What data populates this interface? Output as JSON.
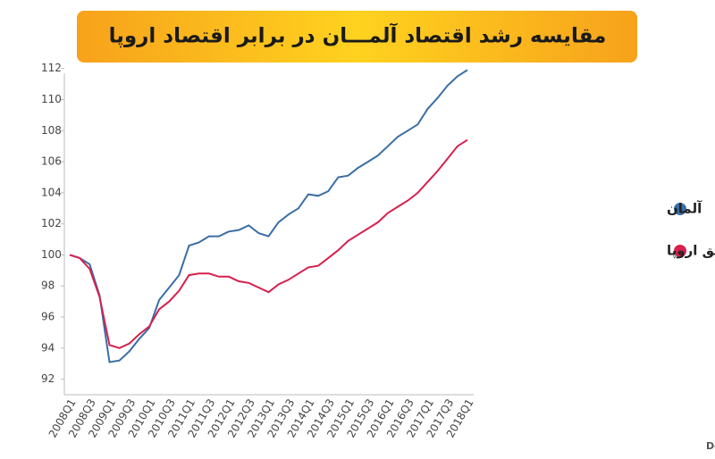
{
  "chart_data": {
    "type": "line",
    "title": "مقایسه رشد اقتصاد آلمـــان در برابر اقتصاد اروپا",
    "source": "منبع: Destatis,Eurostat,Haver Analyticd,and IMF staff calculations",
    "categories": [
      "2008Q1",
      null,
      "2008Q3",
      null,
      "2009Q1",
      null,
      "2009Q3",
      null,
      "2010Q1",
      null,
      "2010Q3",
      null,
      "2011Q1",
      null,
      "2011Q3",
      null,
      "2012Q1",
      null,
      "2012Q3",
      null,
      "2013Q1",
      null,
      "2013Q3",
      null,
      "2014Q1",
      null,
      "2014Q3",
      null,
      "2015Q1",
      null,
      "2015Q3",
      null,
      "2016Q1",
      null,
      "2016Q3",
      null,
      "2017Q1",
      null,
      "2017Q3",
      null,
      "2018Q1"
    ],
    "series": [
      {
        "name": "آلمان",
        "color": "#3a6ea5",
        "values": [
          100,
          99.8,
          99.4,
          97.4,
          93.1,
          93.2,
          93.8,
          94.6,
          95.3,
          97.1,
          97.9,
          98.7,
          100.6,
          100.8,
          101.2,
          101.2,
          101.5,
          101.6,
          101.9,
          101.4,
          101.2,
          102.1,
          102.6,
          103.0,
          103.9,
          103.8,
          104.1,
          105.0,
          105.1,
          105.6,
          106.0,
          106.4,
          107.0,
          107.6,
          108.0,
          108.4,
          109.4,
          110.1,
          110.9,
          111.5,
          111.9
        ]
      },
      {
        "name": "بقیه مناطق اروپا",
        "color": "#d6204e",
        "values": [
          100,
          99.8,
          99.1,
          97.3,
          94.2,
          94.0,
          94.3,
          94.9,
          95.4,
          96.5,
          97.0,
          97.7,
          98.7,
          98.8,
          98.8,
          98.6,
          98.6,
          98.3,
          98.2,
          97.9,
          97.6,
          98.1,
          98.4,
          98.8,
          99.2,
          99.3,
          99.8,
          100.3,
          100.9,
          101.3,
          101.7,
          102.1,
          102.7,
          103.1,
          103.5,
          104.0,
          104.7,
          105.4,
          106.2,
          107.0,
          107.4
        ]
      }
    ],
    "ylim": [
      91,
      112.5
    ],
    "yticks": [
      92,
      94,
      96,
      98,
      100,
      102,
      104,
      106,
      108,
      110,
      112
    ],
    "grid": false,
    "legend": "right"
  }
}
